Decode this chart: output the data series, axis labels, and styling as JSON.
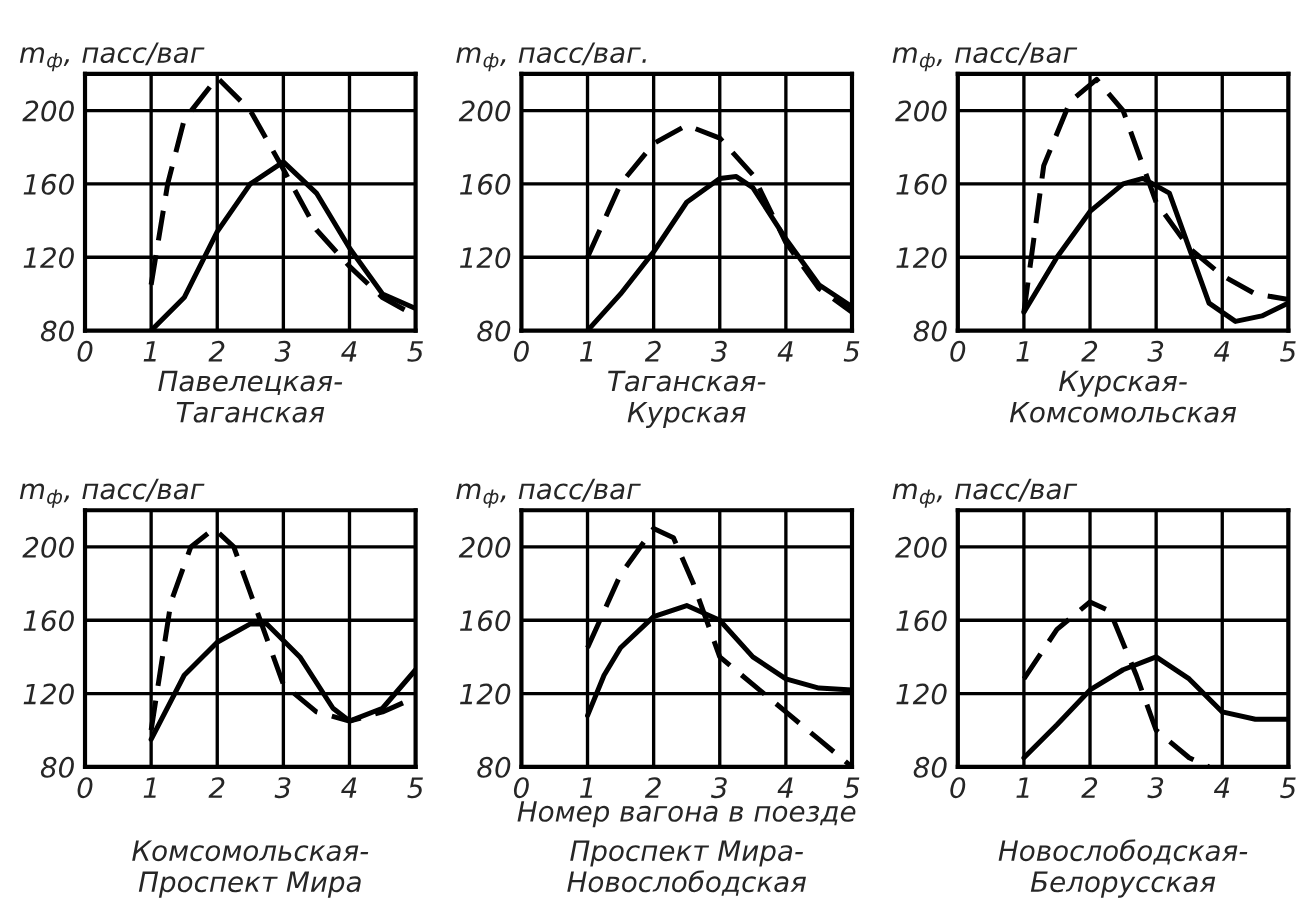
{
  "chart_data": [
    {
      "type": "line",
      "ylabel": "m$_{ф}$, пасс/ваг",
      "xlabel": "Павелецкая-\nТаганская",
      "xlim": [
        0,
        5
      ],
      "ylim": [
        80,
        220
      ],
      "xticks": [
        0,
        1,
        2,
        3,
        4,
        5
      ],
      "yticks": [
        80,
        120,
        160,
        200
      ],
      "grid": true,
      "series": [
        {
          "color": "#000000",
          "line_style": "solid",
          "x": [
            1,
            1.5,
            2,
            2.5,
            3,
            3.5,
            4,
            4.5,
            5
          ],
          "values": [
            80,
            98,
            134,
            160,
            172,
            155,
            125,
            100,
            92
          ]
        },
        {
          "color": "#000000",
          "line_style": "dashed",
          "x": [
            1,
            1.25,
            1.5,
            2,
            2.5,
            3,
            3.5,
            4,
            4.5,
            5
          ],
          "values": [
            105,
            160,
            195,
            218,
            200,
            168,
            135,
            115,
            98,
            88
          ]
        }
      ]
    },
    {
      "type": "line",
      "ylabel": "m$_{ф}$, пасс/ваг.",
      "xlabel": "Таганская-\nКурская",
      "xlim": [
        0,
        5
      ],
      "ylim": [
        80,
        220
      ],
      "xticks": [
        0,
        1,
        2,
        3,
        4,
        5
      ],
      "yticks": [
        80,
        120,
        160,
        200
      ],
      "grid": true,
      "series": [
        {
          "color": "#000000",
          "line_style": "solid",
          "x": [
            1,
            1.5,
            2,
            2.5,
            3,
            3.25,
            3.5,
            4,
            4.5,
            5
          ],
          "values": [
            80,
            100,
            123,
            150,
            163,
            164,
            158,
            130,
            105,
            93
          ]
        },
        {
          "color": "#000000",
          "line_style": "dashed",
          "x": [
            1,
            1.5,
            2,
            2.5,
            3,
            3.5,
            4,
            4.5,
            5
          ],
          "values": [
            120,
            160,
            182,
            192,
            185,
            165,
            128,
            103,
            90
          ]
        }
      ]
    },
    {
      "type": "line",
      "ylabel": "m$_{ф}$, пасс/ваг",
      "xlabel": "Курская-\nКомсомольская",
      "xlim": [
        0,
        5
      ],
      "ylim": [
        80,
        220
      ],
      "xticks": [
        0,
        1,
        2,
        3,
        4,
        5
      ],
      "yticks": [
        80,
        120,
        160,
        200
      ],
      "grid": true,
      "series": [
        {
          "color": "#000000",
          "line_style": "solid",
          "x": [
            1,
            1.5,
            2,
            2.5,
            2.8,
            3.2,
            3.5,
            3.8,
            4.2,
            4.6,
            5
          ],
          "values": [
            90,
            120,
            145,
            160,
            163,
            155,
            125,
            95,
            85,
            88,
            95
          ]
        },
        {
          "color": "#000000",
          "line_style": "dashed",
          "x": [
            1,
            1.3,
            1.7,
            2.1,
            2.5,
            3,
            3.5,
            4,
            4.5,
            5
          ],
          "values": [
            90,
            170,
            205,
            217,
            200,
            150,
            125,
            110,
            100,
            97
          ]
        }
      ]
    },
    {
      "type": "line",
      "ylabel": "m$_{ф}$, пасс/ваг",
      "xlabel": "Комсомольская-\nПроспект Мира",
      "xlim": [
        0,
        5
      ],
      "ylim": [
        80,
        220
      ],
      "xticks": [
        0,
        1,
        2,
        3,
        4,
        5
      ],
      "yticks": [
        80,
        120,
        160,
        200
      ],
      "grid": true,
      "series": [
        {
          "color": "#000000",
          "line_style": "solid",
          "x": [
            1,
            1.5,
            2,
            2.5,
            2.75,
            3.25,
            3.75,
            4,
            4.5,
            5
          ],
          "values": [
            95,
            130,
            148,
            158,
            158,
            140,
            112,
            105,
            112,
            133
          ]
        },
        {
          "color": "#000000",
          "line_style": "dashed",
          "x": [
            1,
            1.3,
            1.6,
            1.95,
            2.25,
            2.5,
            3,
            3.5,
            4,
            4.5,
            5
          ],
          "values": [
            100,
            170,
            200,
            210,
            200,
            175,
            125,
            110,
            105,
            110,
            118
          ]
        }
      ]
    },
    {
      "type": "line",
      "ylabel": "m$_{ф}$, пасс/ваг",
      "xlabel": "Проспект Мира-\nНовослободская",
      "xlim": [
        0,
        5
      ],
      "ylim": [
        80,
        220
      ],
      "xticks": [
        0,
        1,
        2,
        3,
        4,
        5
      ],
      "yticks": [
        80,
        120,
        160,
        200
      ],
      "grid": true,
      "annotations": [
        "Номер вагона в поезде"
      ],
      "series": [
        {
          "color": "#000000",
          "line_style": "solid",
          "x": [
            1,
            1.25,
            1.5,
            2,
            2.5,
            3,
            3.5,
            4,
            4.5,
            5
          ],
          "values": [
            108,
            130,
            145,
            162,
            168,
            160,
            140,
            128,
            123,
            122
          ]
        },
        {
          "color": "#000000",
          "line_style": "dashed",
          "x": [
            1,
            1.5,
            2,
            2.3,
            2.6,
            3,
            3.5,
            4,
            4.5,
            5
          ],
          "values": [
            145,
            185,
            210,
            205,
            180,
            140,
            125,
            110,
            95,
            80
          ]
        }
      ]
    },
    {
      "type": "line",
      "ylabel": "m$_{ф}$, пасс/ваг",
      "xlabel": "Новослободская-\nБелорусская",
      "xlim": [
        0,
        5
      ],
      "ylim": [
        80,
        220
      ],
      "xticks": [
        0,
        1,
        2,
        3,
        4,
        5
      ],
      "yticks": [
        80,
        120,
        160,
        200
      ],
      "grid": true,
      "series": [
        {
          "color": "#000000",
          "line_style": "solid",
          "x": [
            1,
            1.5,
            2,
            2.5,
            3,
            3.5,
            4,
            4.5,
            5
          ],
          "values": [
            85,
            103,
            122,
            133,
            140,
            128,
            110,
            106,
            106
          ]
        },
        {
          "color": "#000000",
          "line_style": "dashed",
          "x": [
            1,
            1.5,
            2,
            2.3,
            2.7,
            3,
            3.5,
            3.8
          ],
          "values": [
            128,
            155,
            170,
            165,
            130,
            100,
            85,
            80
          ]
        }
      ]
    }
  ]
}
